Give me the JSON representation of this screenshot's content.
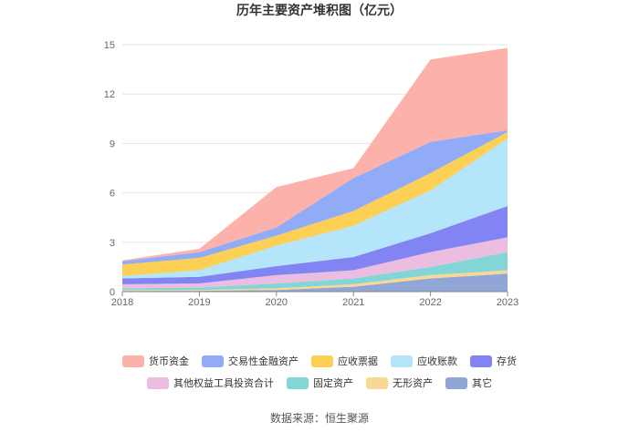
{
  "chart_data": {
    "type": "area",
    "stacked": true,
    "title": "历年主要资产堆积图（亿元）",
    "categories": [
      "2018",
      "2019",
      "2020",
      "2021",
      "2022",
      "2023"
    ],
    "ylim": [
      0,
      15
    ],
    "yticks": [
      0,
      3,
      6,
      9,
      12,
      15
    ],
    "series": [
      {
        "name": "其它",
        "color": "#8fa6d6",
        "values": [
          0.05,
          0.05,
          0.1,
          0.3,
          0.8,
          1.1
        ]
      },
      {
        "name": "无形资产",
        "color": "#fad793",
        "values": [
          0.05,
          0.05,
          0.1,
          0.15,
          0.2,
          0.2
        ]
      },
      {
        "name": "固定资产",
        "color": "#84d6d6",
        "values": [
          0.1,
          0.15,
          0.3,
          0.35,
          0.5,
          1.1
        ]
      },
      {
        "name": "其他权益工具投资合计",
        "color": "#ebbde0",
        "values": [
          0.25,
          0.25,
          0.5,
          0.5,
          0.9,
          0.9
        ]
      },
      {
        "name": "存货",
        "color": "#8384f3",
        "values": [
          0.35,
          0.4,
          0.55,
          0.8,
          1.15,
          1.9
        ]
      },
      {
        "name": "应收账款",
        "color": "#b4e5fb",
        "values": [
          0.15,
          0.4,
          1.25,
          1.9,
          2.6,
          4.1
        ]
      },
      {
        "name": "应收票据",
        "color": "#fccf55",
        "values": [
          0.7,
          0.75,
          0.6,
          0.9,
          1.05,
          0.4
        ]
      },
      {
        "name": "交易性金融资产",
        "color": "#92abf7",
        "values": [
          0.2,
          0.35,
          0.5,
          2.0,
          1.9,
          0.1
        ]
      },
      {
        "name": "货币资金",
        "color": "#fdb1ab",
        "values": [
          0.05,
          0.2,
          2.45,
          0.6,
          5.0,
          5.0
        ]
      }
    ],
    "legend_rows": [
      [
        "货币资金",
        "交易性金融资产",
        "应收票据",
        "应收账款",
        "存货"
      ],
      [
        "其他权益工具投资合计",
        "固定资产",
        "无形资产",
        "其它"
      ]
    ],
    "legend_position": "bottom",
    "grid": true
  },
  "source": "数据来源：恒生聚源"
}
